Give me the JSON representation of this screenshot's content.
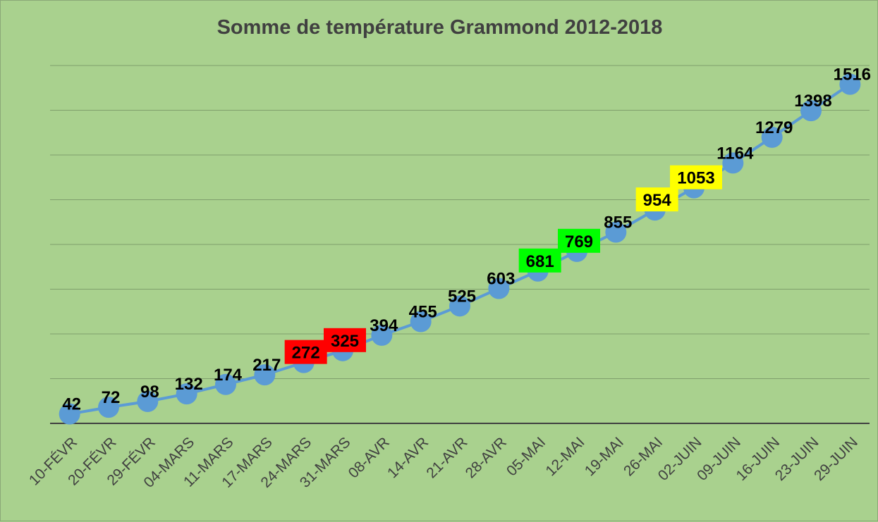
{
  "chart_data": {
    "type": "line",
    "title": "Somme de température Grammond 2012-2018",
    "xlabel": "",
    "ylabel": "",
    "categories": [
      "10-FÉVR",
      "20-FÉVR",
      "29-FÉVR",
      "04-MARS",
      "11-MARS",
      "17-MARS",
      "24-MARS",
      "31-MARS",
      "08-AVR",
      "14-AVR",
      "21-AVR",
      "28-AVR",
      "05-MAI",
      "12-MAI",
      "19-MAI",
      "26-MAI",
      "02-JUIN",
      "09-JUIN",
      "16-JUIN",
      "23-JUIN",
      "29-JUIN"
    ],
    "series": [
      {
        "values": [
          42,
          72,
          98,
          132,
          174,
          217,
          272,
          325,
          394,
          455,
          525,
          603,
          681,
          769,
          855,
          954,
          1053,
          1164,
          1279,
          1398,
          1516
        ],
        "color": "#5b9bd5"
      }
    ],
    "ylim": [
      0,
      1600
    ],
    "grid": true,
    "legend": "none",
    "label_highlights": {
      "272": "#ff0000",
      "325": "#ff0000",
      "681": "#00ff00",
      "769": "#00ff00",
      "954": "#ffff00",
      "1053": "#ffff00"
    },
    "colors": {
      "background": "#a9d18e",
      "gridline": "#7f9f6c",
      "axis": "#404040",
      "line": "#5b9bd5"
    }
  }
}
